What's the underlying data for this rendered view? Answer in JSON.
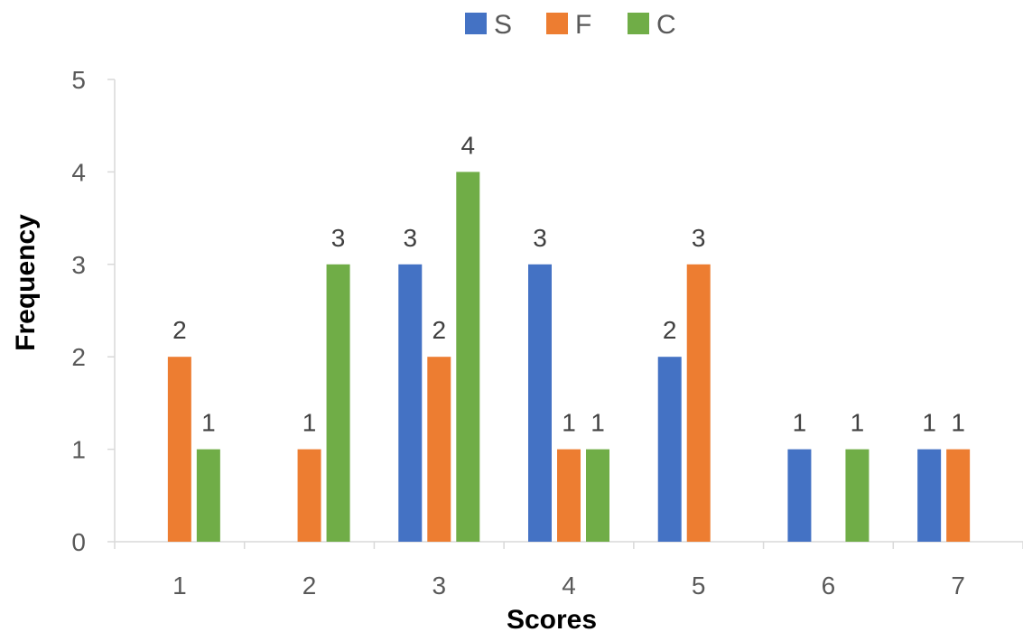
{
  "chart_data": {
    "type": "bar",
    "title": "",
    "xlabel": "Scores",
    "ylabel": "Frequency",
    "categories": [
      "1",
      "2",
      "3",
      "4",
      "5",
      "6",
      "7"
    ],
    "ylim": [
      0,
      5
    ],
    "yticks": [
      "0",
      "1",
      "2",
      "3",
      "4",
      "5"
    ],
    "grid": false,
    "legend_position": "top-center",
    "series": [
      {
        "name": "S",
        "color": "#4472C4",
        "values": [
          0,
          0,
          3,
          3,
          2,
          1,
          1
        ]
      },
      {
        "name": "F",
        "color": "#ED7D31",
        "values": [
          2,
          1,
          2,
          1,
          3,
          0,
          1
        ]
      },
      {
        "name": "C",
        "color": "#70AD47",
        "values": [
          1,
          3,
          4,
          1,
          0,
          1,
          0
        ]
      }
    ]
  }
}
